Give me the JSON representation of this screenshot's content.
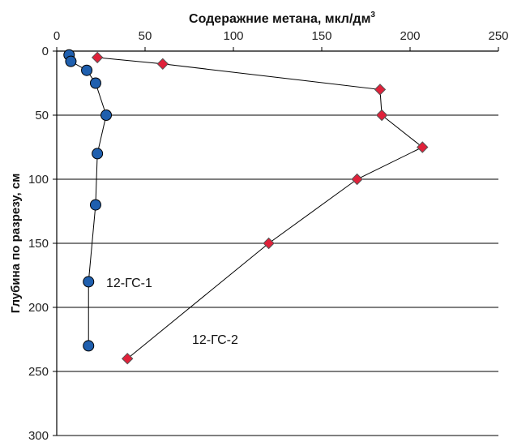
{
  "chart_data": {
    "type": "scatter",
    "xlabel": "Содеражние метана, мкл/дм",
    "xlabel_sup": "3",
    "ylabel": "Глубина по разрезу, см",
    "xlim": [
      0,
      250
    ],
    "ylim": [
      0,
      300
    ],
    "x_axis_position": "top",
    "y_axis_inverted": true,
    "gridlines": "horizontal",
    "x_ticks": [
      0,
      50,
      100,
      150,
      200,
      250
    ],
    "y_ticks": [
      0,
      50,
      100,
      150,
      200,
      250,
      300
    ],
    "series": [
      {
        "name": "12-ГС-1",
        "marker": "circle",
        "color": "#1f5fae",
        "line": true,
        "points": [
          {
            "x": 7,
            "y": 3
          },
          {
            "x": 8,
            "y": 8
          },
          {
            "x": 17,
            "y": 15
          },
          {
            "x": 22,
            "y": 25
          },
          {
            "x": 28,
            "y": 50
          },
          {
            "x": 23,
            "y": 80
          },
          {
            "x": 22,
            "y": 120
          },
          {
            "x": 18,
            "y": 180
          },
          {
            "x": 18,
            "y": 230
          }
        ]
      },
      {
        "name": "12-ГС-2",
        "marker": "diamond",
        "color": "#e0213a",
        "line": true,
        "points": [
          {
            "x": 23,
            "y": 5
          },
          {
            "x": 60,
            "y": 10
          },
          {
            "x": 183,
            "y": 30
          },
          {
            "x": 184,
            "y": 50
          },
          {
            "x": 207,
            "y": 75
          },
          {
            "x": 170,
            "y": 100
          },
          {
            "x": 120,
            "y": 150
          },
          {
            "x": 40,
            "y": 240
          }
        ]
      }
    ]
  }
}
